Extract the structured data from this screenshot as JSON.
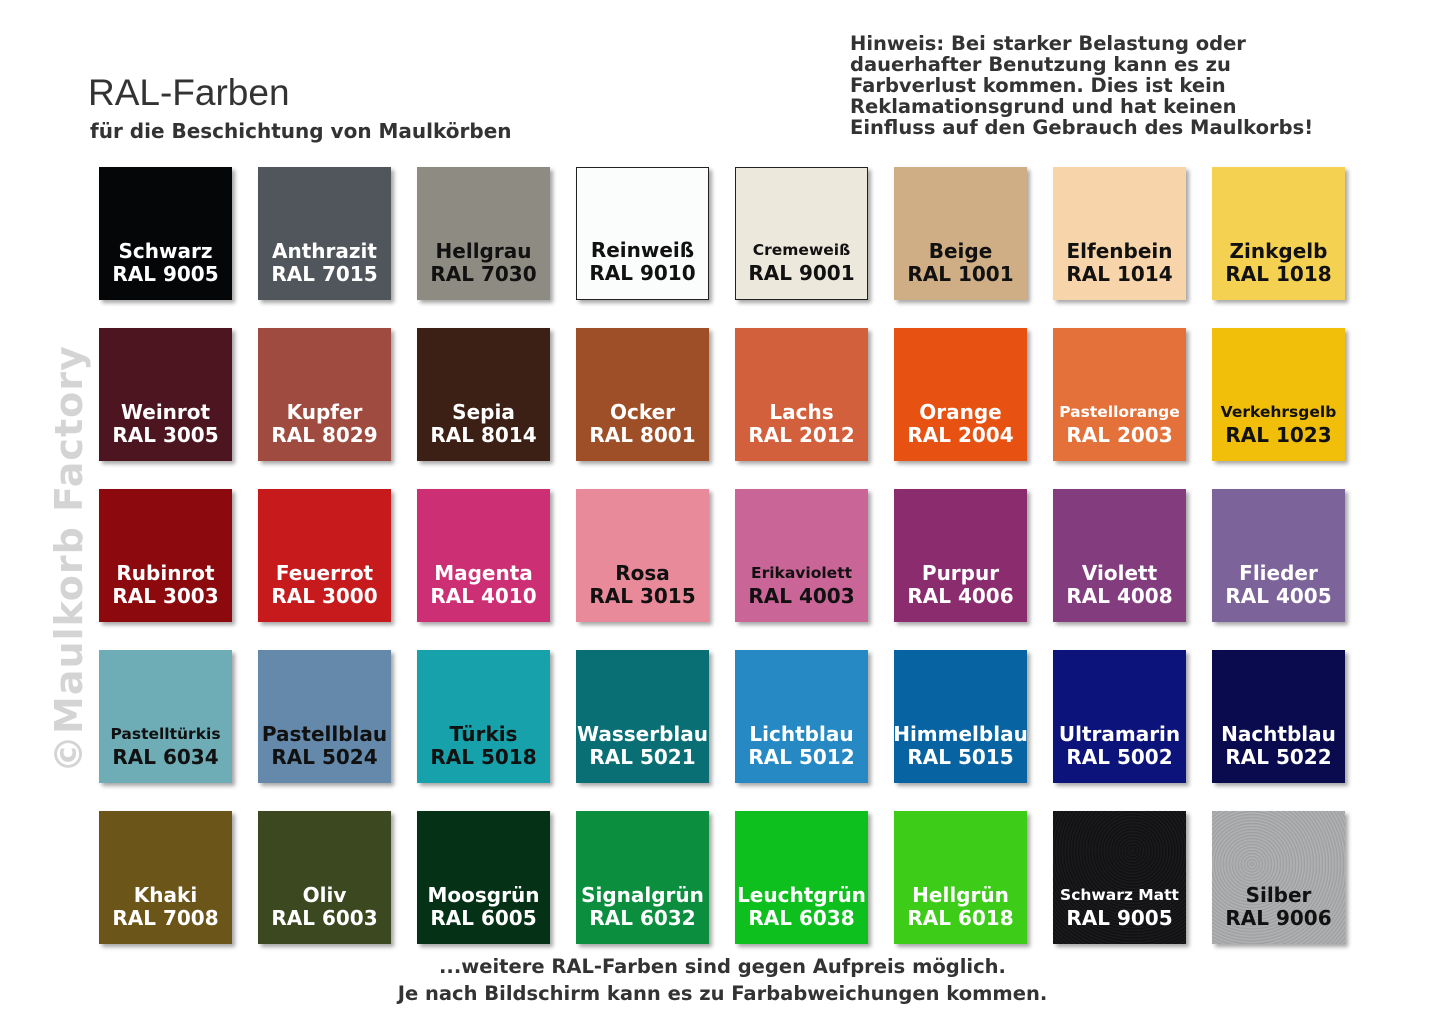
{
  "header": {
    "title": "RAL-Farben",
    "subtitle": "für die Beschichtung von Maulkörben"
  },
  "notice": {
    "lines": [
      "Hinweis: Bei starker Belastung oder",
      "dauerhafter Benutzung kann es zu",
      "Farbverlust kommen. Dies ist kein",
      "Reklamationsgrund und hat keinen",
      "Einfluss auf den Gebrauch des Maulkorbs!"
    ]
  },
  "watermark": "©Maulkorb Factory",
  "swatches": [
    {
      "name": "Schwarz",
      "code": "RAL 9005",
      "color": "#050608",
      "text": "#ffffff"
    },
    {
      "name": "Anthrazit",
      "code": "RAL 7015",
      "color": "#51555c",
      "text": "#ffffff"
    },
    {
      "name": "Hellgrau",
      "code": "RAL 7030",
      "color": "#8e8b82",
      "text": "#111111"
    },
    {
      "name": "Reinweiß",
      "code": "RAL 9010",
      "color": "#fbfdfc",
      "text": "#111111"
    },
    {
      "name": "Cremeweiß",
      "code": "RAL 9001",
      "color": "#ede8dc",
      "text": "#111111"
    },
    {
      "name": "Beige",
      "code": "RAL 1001",
      "color": "#d0ae85",
      "text": "#111111"
    },
    {
      "name": "Elfenbein",
      "code": "RAL 1014",
      "color": "#f7d4aa",
      "text": "#111111"
    },
    {
      "name": "Zinkgelb",
      "code": "RAL 1018",
      "color": "#f5d152",
      "text": "#111111"
    },
    {
      "name": "Weinrot",
      "code": "RAL 3005",
      "color": "#4d1520",
      "text": "#ffffff"
    },
    {
      "name": "Kupfer",
      "code": "RAL 8029",
      "color": "#a04b40",
      "text": "#ffffff"
    },
    {
      "name": "Sepia",
      "code": "RAL 8014",
      "color": "#3d2015",
      "text": "#ffffff"
    },
    {
      "name": "Ocker",
      "code": "RAL 8001",
      "color": "#9e4f27",
      "text": "#ffffff"
    },
    {
      "name": "Lachs",
      "code": "RAL 2012",
      "color": "#d2603c",
      "text": "#ffffff"
    },
    {
      "name": "Orange",
      "code": "RAL 2004",
      "color": "#e75112",
      "text": "#ffffff"
    },
    {
      "name": "Pastellorange",
      "code": "RAL 2003",
      "color": "#e4713a",
      "text": "#ffffff"
    },
    {
      "name": "Verkehrsgelb",
      "code": "RAL 1023",
      "color": "#f1bf0a",
      "text": "#111111"
    },
    {
      "name": "Rubinrot",
      "code": "RAL 3003",
      "color": "#8c0a0e",
      "text": "#ffffff"
    },
    {
      "name": "Feuerrot",
      "code": "RAL 3000",
      "color": "#c71a1c",
      "text": "#ffffff"
    },
    {
      "name": "Magenta",
      "code": "RAL 4010",
      "color": "#cc2f73",
      "text": "#ffffff"
    },
    {
      "name": "Rosa",
      "code": "RAL 3015",
      "color": "#e88a99",
      "text": "#111111"
    },
    {
      "name": "Erikaviolett",
      "code": "RAL 4003",
      "color": "#ca6597",
      "text": "#111111"
    },
    {
      "name": "Purpur",
      "code": "RAL 4006",
      "color": "#8b2c6f",
      "text": "#ffffff"
    },
    {
      "name": "Violett",
      "code": "RAL 4008",
      "color": "#833c7d",
      "text": "#ffffff"
    },
    {
      "name": "Flieder",
      "code": "RAL 4005",
      "color": "#7c6399",
      "text": "#ffffff"
    },
    {
      "name": "Pastelltürkis",
      "code": "RAL 6034",
      "color": "#6eacb6",
      "text": "#111111"
    },
    {
      "name": "Pastellblau",
      "code": "RAL 5024",
      "color": "#6489aa",
      "text": "#111111"
    },
    {
      "name": "Türkis",
      "code": "RAL 5018",
      "color": "#17a1ab",
      "text": "#111111"
    },
    {
      "name": "Wasserblau",
      "code": "RAL 5021",
      "color": "#0a6f74",
      "text": "#ffffff"
    },
    {
      "name": "Lichtblau",
      "code": "RAL 5012",
      "color": "#2689c3",
      "text": "#ffffff"
    },
    {
      "name": "Himmelblau",
      "code": "RAL 5015",
      "color": "#0763a1",
      "text": "#ffffff"
    },
    {
      "name": "Ultramarin",
      "code": "RAL 5002",
      "color": "#0c137a",
      "text": "#ffffff"
    },
    {
      "name": "Nachtblau",
      "code": "RAL 5022",
      "color": "#0a0b4e",
      "text": "#ffffff"
    },
    {
      "name": "Khaki",
      "code": "RAL 7008",
      "color": "#6b5519",
      "text": "#ffffff"
    },
    {
      "name": "Oliv",
      "code": "RAL 6003",
      "color": "#3c4820",
      "text": "#ffffff"
    },
    {
      "name": "Moosgrün",
      "code": "RAL 6005",
      "color": "#053117",
      "text": "#ffffff"
    },
    {
      "name": "Signalgrün",
      "code": "RAL 6032",
      "color": "#0b8f3e",
      "text": "#ffffff"
    },
    {
      "name": "Leuchtgrün",
      "code": "RAL 6038",
      "color": "#0ec01e",
      "text": "#ffffff"
    },
    {
      "name": "Hellgrün",
      "code": "RAL 6018",
      "color": "#3dcc18",
      "text": "#ffffff"
    },
    {
      "name": "Schwarz Matt",
      "code": "RAL 9005",
      "color": "#0c0c0e",
      "text": "#ffffff"
    },
    {
      "name": "Silber",
      "code": "RAL 9006",
      "color": "#a8a9aa",
      "text": "#111111"
    }
  ],
  "footer": {
    "line1": "...weitere RAL-Farben sind gegen Aufpreis möglich.",
    "line2": "Je nach Bildschirm kann es zu Farbabweichungen kommen."
  }
}
